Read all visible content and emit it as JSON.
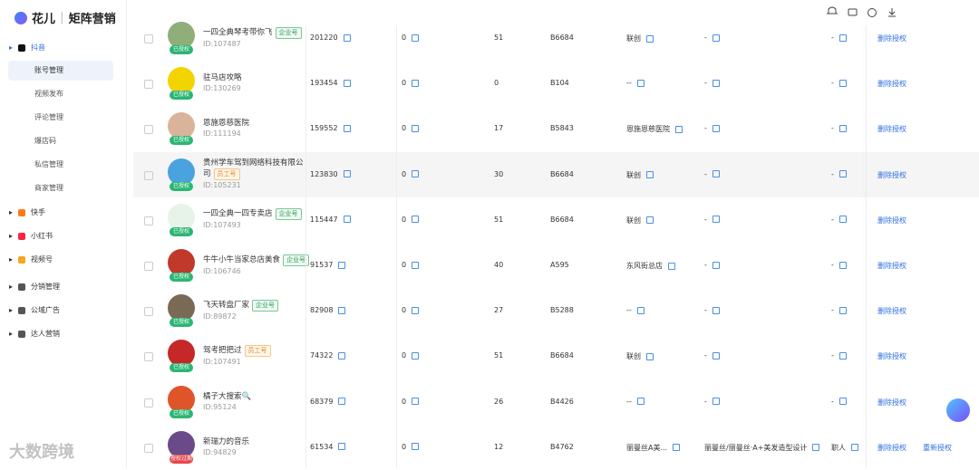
{
  "header": {
    "logo": "花儿",
    "brand": "矩阵营销"
  },
  "sidebar": {
    "groups": [
      {
        "label": "抖音",
        "icon_color": "#111",
        "expanded": true,
        "items": [
          {
            "label": "账号管理",
            "active": true
          },
          {
            "label": "视频发布"
          },
          {
            "label": "评论管理"
          },
          {
            "label": "爆店码"
          },
          {
            "label": "私信管理"
          },
          {
            "label": "商家管理"
          }
        ]
      },
      {
        "label": "快手",
        "icon_color": "#ff7a1a"
      },
      {
        "label": "小红书",
        "icon_color": "#ff2442"
      },
      {
        "label": "视频号",
        "icon_color": "#f5a623"
      },
      {
        "label": "分销管理",
        "icon_color": "#555"
      },
      {
        "label": "公域广告",
        "icon_color": "#555"
      },
      {
        "label": "达人营销",
        "icon_color": "#555"
      }
    ]
  },
  "table": {
    "rows": [
      {
        "name": "一四全典琴考带你飞",
        "tag": "企业号",
        "id": "ID:107487",
        "badge": "已授权",
        "avatar_color": "#8fae7a",
        "cells": [
          201220,
          0,
          51,
          "B6684",
          "联创",
          "-",
          "-"
        ],
        "actions": [
          "删除授权"
        ]
      },
      {
        "name": "驻马店攻略",
        "id": "ID:130269",
        "badge": "已授权",
        "avatar_color": "#f2d400",
        "cells": [
          193454,
          0,
          0,
          "B104",
          "--",
          "-",
          "-"
        ],
        "actions": [
          "删除授权"
        ]
      },
      {
        "name": "恩施恩慈医院",
        "id": "ID:111194",
        "badge": "已授权",
        "avatar_color": "#d9b49a",
        "cells": [
          159552,
          0,
          17,
          "B5843",
          "恩施恩慈医院",
          "-",
          "-"
        ],
        "actions": [
          "删除授权"
        ]
      },
      {
        "name": "贵州学车驾到网络科技有限公司",
        "tag": "员工号",
        "id": "ID:105231",
        "badge": "已授权",
        "avatar_color": "#4aa3df",
        "cells": [
          123830,
          0,
          30,
          "B6684",
          "联创",
          "-",
          "-"
        ],
        "actions": [
          "删除授权"
        ]
      },
      {
        "name": "一四全典一四专卖店",
        "tag": "企业号",
        "id": "ID:107493",
        "badge": "已授权",
        "avatar_color": "#e8f3e8",
        "cells": [
          115447,
          0,
          51,
          "B6684",
          "联创",
          "-",
          "-"
        ],
        "actions": [
          "删除授权"
        ]
      },
      {
        "name": "牛牛小牛当家总店美食",
        "tag": "企业号",
        "id": "ID:106746",
        "badge": "已授权",
        "avatar_color": "#c0392b",
        "cells": [
          91537,
          0,
          40,
          "A595",
          "东风街总店",
          "-",
          "-"
        ],
        "actions": [
          "删除授权"
        ]
      },
      {
        "name": "飞天转盘厂家",
        "tag": "企业号",
        "id": "ID:89872",
        "badge": "已授权",
        "avatar_color": "#7a6a55",
        "cells": [
          82908,
          0,
          27,
          "B5288",
          "--",
          "-",
          "-"
        ],
        "actions": [
          "删除授权"
        ]
      },
      {
        "name": "驾考把把过",
        "tag": "员工号",
        "id": "ID:107491",
        "badge": "已授权",
        "avatar_color": "#c62828",
        "cells": [
          74322,
          0,
          51,
          "B6684",
          "联创",
          "-",
          "-"
        ],
        "actions": [
          "删除授权"
        ]
      },
      {
        "name": "橘子大搜索🔍",
        "id": "ID:95124",
        "badge": "已授权",
        "avatar_color": "#e0542a",
        "cells": [
          68379,
          0,
          26,
          "B4426",
          "--",
          "-",
          "-"
        ],
        "actions": [
          "删除授权"
        ]
      },
      {
        "name": "新瑞力的音乐",
        "id": "ID:94829",
        "badge": "授权过期",
        "avatar_color": "#6b4a8a",
        "cells": [
          61534,
          0,
          12,
          "B4762",
          "丽曼丝A美...",
          "丽曼丝/丽曼丝·A+美发造型设计",
          "职人"
        ],
        "actions": [
          "删除授权",
          "重新授权"
        ]
      }
    ]
  },
  "watermark": "大数跨境"
}
